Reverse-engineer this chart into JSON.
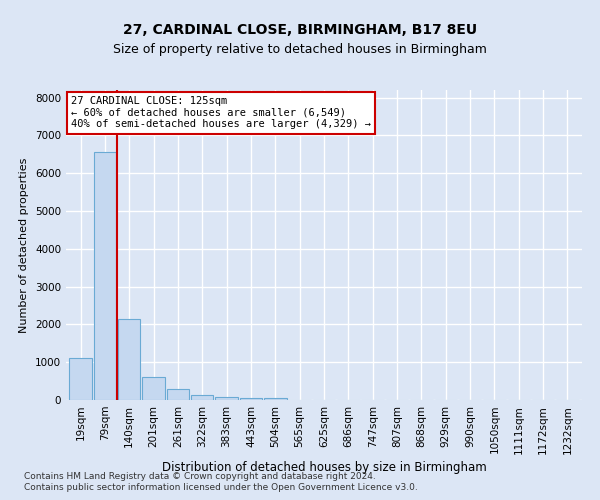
{
  "title1": "27, CARDINAL CLOSE, BIRMINGHAM, B17 8EU",
  "title2": "Size of property relative to detached houses in Birmingham",
  "xlabel": "Distribution of detached houses by size in Birmingham",
  "ylabel": "Number of detached properties",
  "footnote1": "Contains HM Land Registry data © Crown copyright and database right 2024.",
  "footnote2": "Contains public sector information licensed under the Open Government Licence v3.0.",
  "bin_labels": [
    "19sqm",
    "79sqm",
    "140sqm",
    "201sqm",
    "261sqm",
    "322sqm",
    "383sqm",
    "443sqm",
    "504sqm",
    "565sqm",
    "625sqm",
    "686sqm",
    "747sqm",
    "807sqm",
    "868sqm",
    "929sqm",
    "990sqm",
    "1050sqm",
    "1111sqm",
    "1172sqm",
    "1232sqm"
  ],
  "bar_values": [
    1100,
    6549,
    2150,
    600,
    280,
    130,
    80,
    50,
    40,
    5,
    5,
    0,
    0,
    0,
    0,
    0,
    0,
    0,
    0,
    0,
    0
  ],
  "bar_color": "#c5d8f0",
  "bar_edge_color": "#6aaad4",
  "prop_line_label": "27 CARDINAL CLOSE: 125sqm",
  "annotation_line1": "← 60% of detached houses are smaller (6,549)",
  "annotation_line2": "40% of semi-detached houses are larger (4,329) →",
  "line_color": "#cc0000",
  "annotation_box_facecolor": "#ffffff",
  "annotation_box_edgecolor": "#cc0000",
  "ylim": [
    0,
    8200
  ],
  "yticks": [
    0,
    1000,
    2000,
    3000,
    4000,
    5000,
    6000,
    7000,
    8000
  ],
  "background_color": "#dce6f5",
  "plot_bg_color": "#dce6f5",
  "grid_color": "#ffffff",
  "title1_fontsize": 10,
  "title2_fontsize": 9,
  "ylabel_fontsize": 8,
  "xlabel_fontsize": 8.5,
  "tick_fontsize": 7.5,
  "footnote_fontsize": 6.5
}
